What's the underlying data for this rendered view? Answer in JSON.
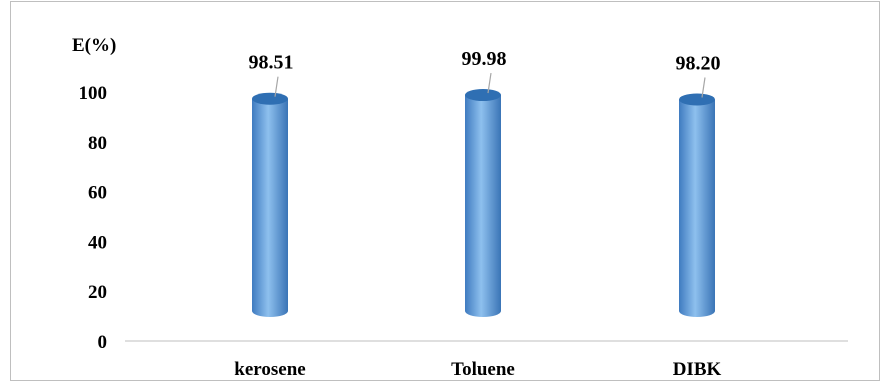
{
  "chart_data": {
    "type": "bar",
    "style": "3d-cylinder",
    "categories": [
      "kerosene",
      "Toluene",
      "DIBK"
    ],
    "values": [
      98.51,
      99.98,
      98.2
    ],
    "data_labels": [
      "98.51",
      "99.98",
      "98.20"
    ],
    "ylabel": "E(%)",
    "ylim": [
      0,
      100
    ],
    "yticks": [
      "0",
      "20",
      "40",
      "60",
      "80",
      "100"
    ],
    "grid": false,
    "legend": "none",
    "colors": {
      "bar_side": "#4a86c8",
      "bar_highlight": "#8ec0ee",
      "bar_top": "#2f6fb3",
      "axis": "#bfbfbf",
      "leader": "#a6a6a6"
    }
  }
}
